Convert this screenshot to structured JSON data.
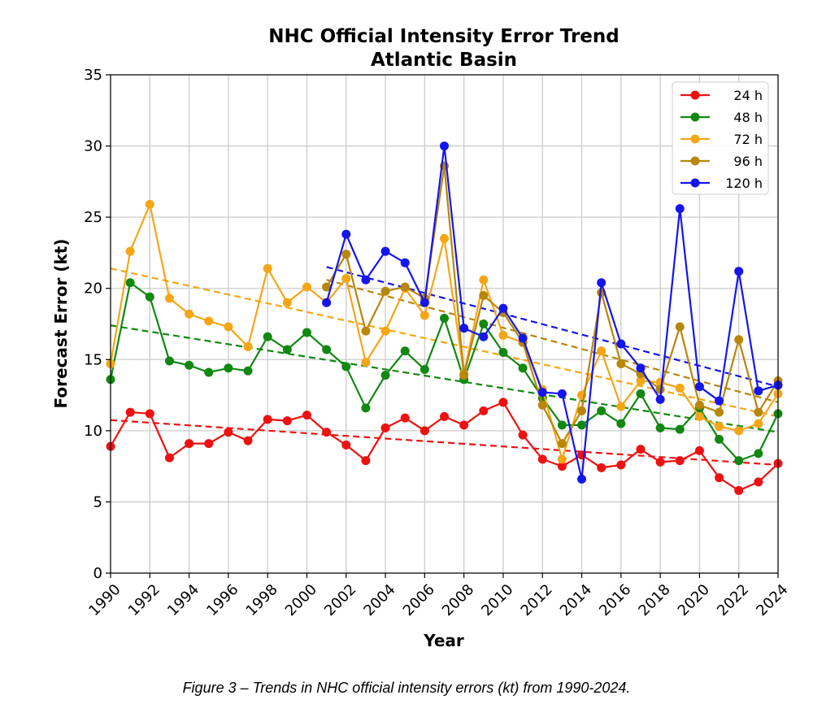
{
  "caption": "Figure 3 – Trends in NHC official intensity errors (kt) from 1990-2024.",
  "chart_data": {
    "type": "line",
    "title": "NHC Official Intensity Error Trend",
    "subtitle": "Atlantic Basin",
    "xlabel": "Year",
    "ylabel": "Forecast Error (kt)",
    "xlim": [
      1990,
      2024
    ],
    "ylim": [
      0,
      35
    ],
    "xticks": [
      1990,
      1992,
      1994,
      1996,
      1998,
      2000,
      2002,
      2004,
      2006,
      2008,
      2010,
      2012,
      2014,
      2016,
      2018,
      2020,
      2022,
      2024
    ],
    "yticks": [
      0,
      5,
      10,
      15,
      20,
      25,
      30,
      35
    ],
    "grid": true,
    "legend_position": "top-right",
    "series": [
      {
        "name": "24 h",
        "color": "#ee1111",
        "x": [
          1990,
          1991,
          1992,
          1993,
          1994,
          1995,
          1996,
          1997,
          1998,
          1999,
          2000,
          2001,
          2002,
          2003,
          2004,
          2005,
          2006,
          2007,
          2008,
          2009,
          2010,
          2011,
          2012,
          2013,
          2014,
          2015,
          2016,
          2017,
          2018,
          2019,
          2020,
          2021,
          2022,
          2023,
          2024
        ],
        "values": [
          8.9,
          11.3,
          11.2,
          8.1,
          9.1,
          9.1,
          9.9,
          9.3,
          10.8,
          10.7,
          11.1,
          9.9,
          9.0,
          7.9,
          10.2,
          10.9,
          10.0,
          11.0,
          10.4,
          11.4,
          12.0,
          9.7,
          8.0,
          7.5,
          8.3,
          7.4,
          7.6,
          8.7,
          7.8,
          7.9,
          8.6,
          6.7,
          5.8,
          6.4,
          7.7
        ],
        "trend": [
          10.75,
          7.6
        ]
      },
      {
        "name": "48 h",
        "color": "#118811",
        "x": [
          1990,
          1991,
          1992,
          1993,
          1994,
          1995,
          1996,
          1997,
          1998,
          1999,
          2000,
          2001,
          2002,
          2003,
          2004,
          2005,
          2006,
          2007,
          2008,
          2009,
          2010,
          2011,
          2012,
          2013,
          2014,
          2015,
          2016,
          2017,
          2018,
          2019,
          2020,
          2021,
          2022,
          2023,
          2024
        ],
        "values": [
          13.6,
          20.4,
          19.4,
          14.9,
          14.6,
          14.1,
          14.4,
          14.2,
          16.6,
          15.7,
          16.9,
          15.7,
          14.5,
          11.6,
          13.9,
          15.6,
          14.3,
          17.9,
          13.6,
          17.5,
          15.5,
          14.4,
          12.3,
          10.4,
          10.4,
          11.4,
          10.5,
          12.6,
          10.2,
          10.1,
          11.6,
          9.4,
          7.9,
          8.4,
          11.2
        ],
        "trend": [
          17.4,
          9.9
        ]
      },
      {
        "name": "72 h",
        "color": "#f5a615",
        "x": [
          1990,
          1991,
          1992,
          1993,
          1994,
          1995,
          1996,
          1997,
          1998,
          1999,
          2000,
          2001,
          2002,
          2003,
          2004,
          2005,
          2006,
          2007,
          2008,
          2009,
          2010,
          2011,
          2012,
          2013,
          2014,
          2015,
          2016,
          2017,
          2018,
          2019,
          2020,
          2021,
          2022,
          2023,
          2024
        ],
        "values": [
          14.7,
          22.6,
          25.9,
          19.3,
          18.2,
          17.7,
          17.3,
          15.9,
          21.4,
          19.0,
          20.1,
          19.0,
          20.7,
          14.8,
          17.0,
          20.0,
          18.1,
          23.5,
          14.0,
          20.6,
          16.7,
          16.2,
          12.9,
          8.0,
          12.5,
          15.6,
          11.7,
          13.5,
          13.4,
          13.0,
          11.0,
          10.3,
          10.0,
          10.5,
          12.6
        ],
        "trend": [
          21.4,
          11.0
        ]
      },
      {
        "name": "96 h",
        "color": "#b8860b",
        "x": [
          2001,
          2002,
          2003,
          2004,
          2005,
          2006,
          2007,
          2008,
          2009,
          2010,
          2011,
          2012,
          2013,
          2014,
          2015,
          2016,
          2017,
          2018,
          2019,
          2020,
          2021,
          2022,
          2023,
          2024
        ],
        "values": [
          20.1,
          22.4,
          17.0,
          19.8,
          20.1,
          19.3,
          28.6,
          13.9,
          19.5,
          18.3,
          16.2,
          11.8,
          9.1,
          11.4,
          19.7,
          14.7,
          14.0,
          12.9,
          17.3,
          11.8,
          11.3,
          16.4,
          11.3,
          13.5
        ],
        "trend": [
          20.6,
          12.0
        ]
      },
      {
        "name": "120 h",
        "color": "#1515ee",
        "x": [
          2001,
          2002,
          2003,
          2004,
          2005,
          2006,
          2007,
          2008,
          2009,
          2010,
          2011,
          2012,
          2013,
          2014,
          2015,
          2016,
          2017,
          2018,
          2019,
          2020,
          2021,
          2022,
          2023,
          2024
        ],
        "values": [
          19.0,
          23.8,
          20.6,
          22.6,
          21.8,
          19.0,
          30.0,
          17.2,
          16.6,
          18.6,
          16.5,
          12.7,
          12.6,
          6.6,
          20.4,
          16.1,
          14.4,
          12.2,
          25.6,
          13.1,
          12.1,
          21.2,
          12.8,
          13.2
        ],
        "trend": [
          21.5,
          13.1
        ]
      }
    ]
  }
}
